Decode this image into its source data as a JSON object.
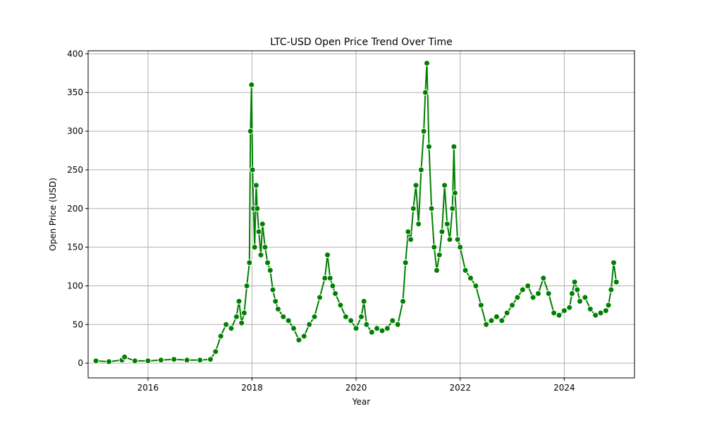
{
  "chart_data": {
    "type": "line",
    "title": "LTC-USD Open Price Trend Over Time",
    "xlabel": "Year",
    "ylabel": "Open Price (USD)",
    "xlim": [
      2014.85,
      2025.35
    ],
    "ylim": [
      -19,
      404
    ],
    "x_ticks": [
      2016,
      2018,
      2020,
      2022,
      2024
    ],
    "x_tick_labels": [
      "2016",
      "2018",
      "2020",
      "2022",
      "2024"
    ],
    "y_ticks": [
      0,
      50,
      100,
      150,
      200,
      250,
      300,
      350,
      400
    ],
    "y_tick_labels": [
      "0",
      "50",
      "100",
      "150",
      "200",
      "250",
      "300",
      "350",
      "400"
    ],
    "grid": true,
    "line_color": "#008000",
    "marker_face": "#008000",
    "marker_edge": "#ffffff",
    "series": [
      {
        "x": [
          2015.0,
          2015.25,
          2015.5,
          2015.55,
          2015.75,
          2016.0,
          2016.25,
          2016.5,
          2016.75,
          2017.0,
          2017.2,
          2017.3,
          2017.4,
          2017.5,
          2017.6,
          2017.7,
          2017.75,
          2017.8,
          2017.85,
          2017.9,
          2017.95,
          2017.97,
          2017.99,
          2018.01,
          2018.03,
          2018.05,
          2018.08,
          2018.1,
          2018.13,
          2018.17,
          2018.2,
          2018.25,
          2018.3,
          2018.35,
          2018.4,
          2018.45,
          2018.5,
          2018.6,
          2018.7,
          2018.8,
          2018.9,
          2019.0,
          2019.1,
          2019.2,
          2019.3,
          2019.4,
          2019.45,
          2019.5,
          2019.55,
          2019.6,
          2019.7,
          2019.8,
          2019.9,
          2020.0,
          2020.1,
          2020.15,
          2020.2,
          2020.3,
          2020.4,
          2020.5,
          2020.6,
          2020.7,
          2020.8,
          2020.9,
          2020.95,
          2021.0,
          2021.05,
          2021.1,
          2021.15,
          2021.2,
          2021.25,
          2021.3,
          2021.33,
          2021.36,
          2021.4,
          2021.45,
          2021.5,
          2021.55,
          2021.6,
          2021.65,
          2021.7,
          2021.75,
          2021.8,
          2021.85,
          2021.88,
          2021.9,
          2021.95,
          2022.0,
          2022.1,
          2022.2,
          2022.3,
          2022.4,
          2022.5,
          2022.6,
          2022.7,
          2022.8,
          2022.9,
          2023.0,
          2023.1,
          2023.2,
          2023.3,
          2023.4,
          2023.5,
          2023.6,
          2023.7,
          2023.8,
          2023.9,
          2024.0,
          2024.1,
          2024.15,
          2024.2,
          2024.25,
          2024.3,
          2024.4,
          2024.5,
          2024.6,
          2024.7,
          2024.8,
          2024.85,
          2024.9,
          2024.95,
          2025.0
        ],
        "y": [
          3,
          2,
          4,
          8,
          3,
          3,
          4,
          5,
          4,
          4,
          5,
          15,
          35,
          50,
          45,
          60,
          80,
          52,
          65,
          100,
          130,
          300,
          360,
          250,
          200,
          150,
          230,
          200,
          170,
          140,
          180,
          150,
          130,
          120,
          95,
          80,
          70,
          60,
          55,
          45,
          30,
          35,
          50,
          60,
          85,
          110,
          140,
          110,
          100,
          90,
          75,
          60,
          55,
          45,
          60,
          80,
          50,
          40,
          45,
          42,
          45,
          55,
          50,
          80,
          130,
          170,
          160,
          200,
          230,
          180,
          250,
          300,
          350,
          388,
          280,
          200,
          150,
          120,
          140,
          170,
          230,
          180,
          160,
          200,
          280,
          220,
          160,
          150,
          120,
          110,
          100,
          75,
          50,
          55,
          60,
          55,
          65,
          75,
          85,
          95,
          100,
          85,
          90,
          110,
          90,
          65,
          62,
          68,
          72,
          90,
          105,
          95,
          80,
          85,
          70,
          62,
          65,
          68,
          75,
          95,
          130,
          105
        ]
      }
    ]
  }
}
